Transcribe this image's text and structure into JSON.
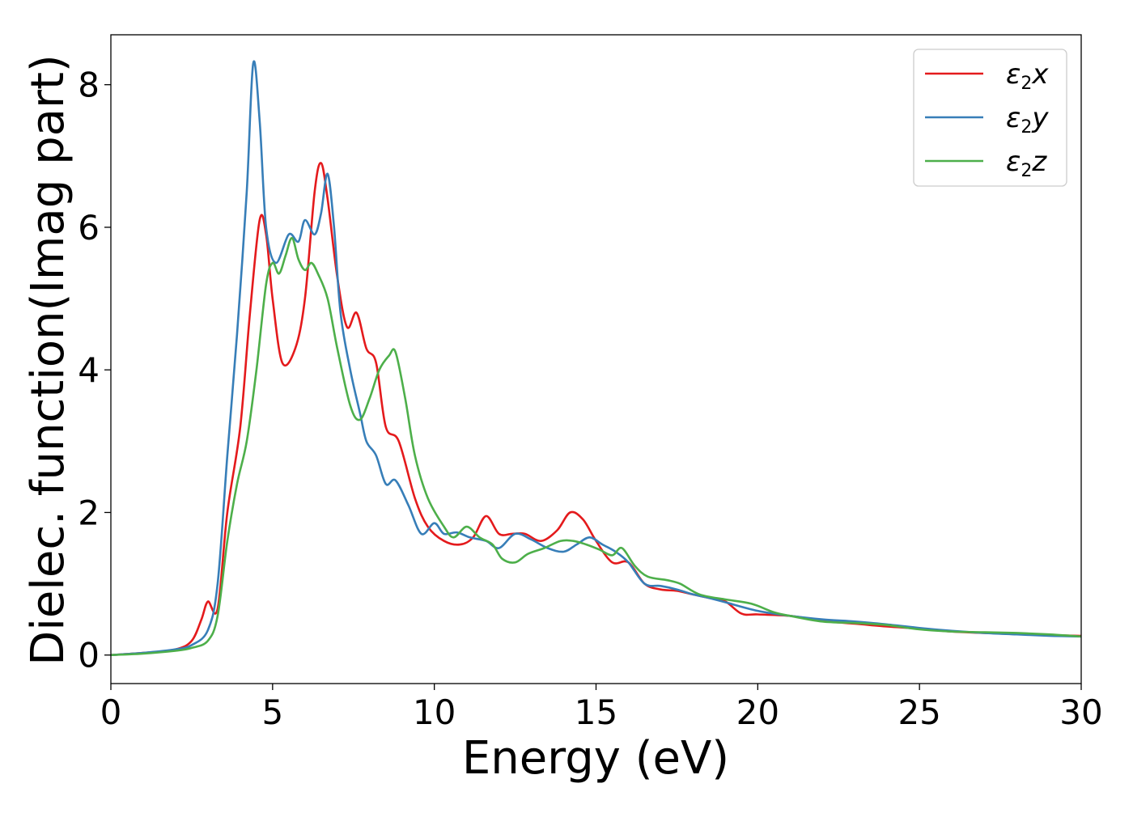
{
  "chart_data": {
    "type": "line",
    "title": "",
    "xlabel": "Energy (eV)",
    "ylabel": "Dielec. function(Imag part)",
    "xlim": [
      0,
      30
    ],
    "ylim": [
      -0.4,
      8.7
    ],
    "xticks": [
      0,
      5,
      10,
      15,
      20,
      25,
      30
    ],
    "yticks": [
      0,
      2,
      4,
      6,
      8
    ],
    "grid": false,
    "legend_position": "top-right",
    "series": [
      {
        "name": "ε2x",
        "label_base": "ε",
        "label_sub": "2",
        "label_suffix": "x",
        "color": "#e41a1c",
        "points": [
          [
            0,
            0
          ],
          [
            1,
            0.03
          ],
          [
            2,
            0.08
          ],
          [
            2.5,
            0.2
          ],
          [
            2.8,
            0.5
          ],
          [
            3.0,
            0.75
          ],
          [
            3.3,
            0.65
          ],
          [
            3.6,
            2.0
          ],
          [
            4.0,
            3.2
          ],
          [
            4.3,
            4.8
          ],
          [
            4.6,
            6.1
          ],
          [
            4.8,
            5.9
          ],
          [
            5.0,
            5.0
          ],
          [
            5.3,
            4.1
          ],
          [
            5.7,
            4.3
          ],
          [
            6.0,
            5.0
          ],
          [
            6.3,
            6.5
          ],
          [
            6.5,
            6.9
          ],
          [
            6.7,
            6.4
          ],
          [
            7.0,
            5.3
          ],
          [
            7.3,
            4.6
          ],
          [
            7.6,
            4.8
          ],
          [
            7.9,
            4.3
          ],
          [
            8.2,
            4.1
          ],
          [
            8.5,
            3.2
          ],
          [
            8.9,
            3.0
          ],
          [
            9.4,
            2.2
          ],
          [
            9.8,
            1.8
          ],
          [
            10.3,
            1.6
          ],
          [
            10.8,
            1.55
          ],
          [
            11.2,
            1.65
          ],
          [
            11.6,
            1.95
          ],
          [
            12.0,
            1.7
          ],
          [
            12.4,
            1.7
          ],
          [
            12.8,
            1.7
          ],
          [
            13.3,
            1.6
          ],
          [
            13.8,
            1.75
          ],
          [
            14.2,
            2.0
          ],
          [
            14.6,
            1.9
          ],
          [
            15.0,
            1.6
          ],
          [
            15.5,
            1.3
          ],
          [
            16.0,
            1.3
          ],
          [
            16.5,
            1.0
          ],
          [
            17.0,
            0.92
          ],
          [
            17.5,
            0.9
          ],
          [
            18.0,
            0.85
          ],
          [
            18.5,
            0.8
          ],
          [
            19.0,
            0.75
          ],
          [
            19.5,
            0.58
          ],
          [
            20.0,
            0.57
          ],
          [
            21.0,
            0.55
          ],
          [
            22.0,
            0.48
          ],
          [
            23.0,
            0.44
          ],
          [
            24.0,
            0.4
          ],
          [
            25.0,
            0.37
          ],
          [
            26.0,
            0.33
          ],
          [
            27.0,
            0.31
          ],
          [
            28.0,
            0.3
          ],
          [
            29.0,
            0.28
          ],
          [
            30.0,
            0.27
          ]
        ]
      },
      {
        "name": "ε2y",
        "label_base": "ε",
        "label_sub": "2",
        "label_suffix": "y",
        "color": "#377eb8",
        "points": [
          [
            0,
            0
          ],
          [
            1,
            0.03
          ],
          [
            2,
            0.08
          ],
          [
            2.5,
            0.14
          ],
          [
            3.0,
            0.35
          ],
          [
            3.3,
            1.0
          ],
          [
            3.6,
            2.8
          ],
          [
            3.9,
            4.5
          ],
          [
            4.2,
            6.5
          ],
          [
            4.4,
            8.3
          ],
          [
            4.6,
            7.5
          ],
          [
            4.8,
            6.0
          ],
          [
            5.1,
            5.5
          ],
          [
            5.5,
            5.9
          ],
          [
            5.8,
            5.8
          ],
          [
            6.0,
            6.1
          ],
          [
            6.3,
            5.9
          ],
          [
            6.5,
            6.2
          ],
          [
            6.7,
            6.75
          ],
          [
            6.9,
            6.0
          ],
          [
            7.1,
            4.8
          ],
          [
            7.4,
            4.0
          ],
          [
            7.7,
            3.4
          ],
          [
            7.9,
            3.0
          ],
          [
            8.2,
            2.8
          ],
          [
            8.5,
            2.4
          ],
          [
            8.8,
            2.45
          ],
          [
            9.2,
            2.1
          ],
          [
            9.6,
            1.7
          ],
          [
            10.0,
            1.85
          ],
          [
            10.3,
            1.7
          ],
          [
            10.7,
            1.72
          ],
          [
            11.1,
            1.65
          ],
          [
            11.6,
            1.6
          ],
          [
            12.0,
            1.5
          ],
          [
            12.5,
            1.7
          ],
          [
            13.0,
            1.62
          ],
          [
            13.5,
            1.5
          ],
          [
            14.0,
            1.45
          ],
          [
            14.4,
            1.55
          ],
          [
            14.8,
            1.65
          ],
          [
            15.2,
            1.55
          ],
          [
            15.6,
            1.45
          ],
          [
            16.0,
            1.3
          ],
          [
            16.5,
            1.0
          ],
          [
            17.0,
            0.97
          ],
          [
            17.5,
            0.92
          ],
          [
            18.0,
            0.85
          ],
          [
            18.5,
            0.8
          ],
          [
            19.0,
            0.74
          ],
          [
            20.0,
            0.62
          ],
          [
            21.0,
            0.55
          ],
          [
            22.0,
            0.5
          ],
          [
            23.0,
            0.47
          ],
          [
            24.0,
            0.43
          ],
          [
            25.0,
            0.38
          ],
          [
            26.0,
            0.34
          ],
          [
            27.0,
            0.31
          ],
          [
            28.0,
            0.29
          ],
          [
            29.0,
            0.27
          ],
          [
            30.0,
            0.26
          ]
        ]
      },
      {
        "name": "ε2z",
        "label_base": "ε",
        "label_sub": "2",
        "label_suffix": "z",
        "color": "#4daf4a",
        "points": [
          [
            0,
            0
          ],
          [
            1,
            0.02
          ],
          [
            2,
            0.06
          ],
          [
            2.5,
            0.1
          ],
          [
            3.0,
            0.2
          ],
          [
            3.3,
            0.55
          ],
          [
            3.6,
            1.6
          ],
          [
            3.9,
            2.4
          ],
          [
            4.2,
            3.0
          ],
          [
            4.5,
            4.0
          ],
          [
            4.8,
            5.2
          ],
          [
            5.0,
            5.5
          ],
          [
            5.2,
            5.35
          ],
          [
            5.4,
            5.6
          ],
          [
            5.6,
            5.85
          ],
          [
            5.8,
            5.55
          ],
          [
            6.0,
            5.4
          ],
          [
            6.2,
            5.5
          ],
          [
            6.4,
            5.35
          ],
          [
            6.7,
            5.0
          ],
          [
            7.0,
            4.3
          ],
          [
            7.4,
            3.5
          ],
          [
            7.7,
            3.3
          ],
          [
            8.0,
            3.6
          ],
          [
            8.3,
            4.0
          ],
          [
            8.6,
            4.2
          ],
          [
            8.8,
            4.25
          ],
          [
            9.1,
            3.6
          ],
          [
            9.4,
            2.8
          ],
          [
            9.8,
            2.2
          ],
          [
            10.3,
            1.8
          ],
          [
            10.6,
            1.65
          ],
          [
            11.0,
            1.8
          ],
          [
            11.4,
            1.65
          ],
          [
            11.8,
            1.55
          ],
          [
            12.1,
            1.35
          ],
          [
            12.5,
            1.3
          ],
          [
            12.9,
            1.42
          ],
          [
            13.4,
            1.5
          ],
          [
            13.9,
            1.6
          ],
          [
            14.3,
            1.6
          ],
          [
            14.7,
            1.55
          ],
          [
            15.1,
            1.48
          ],
          [
            15.5,
            1.4
          ],
          [
            15.8,
            1.5
          ],
          [
            16.2,
            1.25
          ],
          [
            16.6,
            1.1
          ],
          [
            17.2,
            1.05
          ],
          [
            17.6,
            1.0
          ],
          [
            18.2,
            0.85
          ],
          [
            19.0,
            0.78
          ],
          [
            19.8,
            0.72
          ],
          [
            20.5,
            0.6
          ],
          [
            21.0,
            0.55
          ],
          [
            22.0,
            0.47
          ],
          [
            23.0,
            0.45
          ],
          [
            24.0,
            0.42
          ],
          [
            25.0,
            0.36
          ],
          [
            26.0,
            0.33
          ],
          [
            27.0,
            0.32
          ],
          [
            28.0,
            0.31
          ],
          [
            29.0,
            0.29
          ],
          [
            30.0,
            0.26
          ]
        ]
      }
    ]
  }
}
